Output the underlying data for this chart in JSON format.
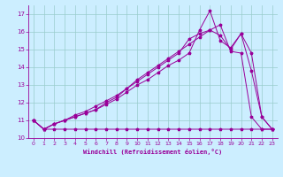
{
  "xlabel": "Windchill (Refroidissement éolien,°C)",
  "xlim": [
    -0.5,
    23.5
  ],
  "ylim": [
    10,
    17.5
  ],
  "yticks": [
    10,
    11,
    12,
    13,
    14,
    15,
    16,
    17
  ],
  "xticks": [
    0,
    1,
    2,
    3,
    4,
    5,
    6,
    7,
    8,
    9,
    10,
    11,
    12,
    13,
    14,
    15,
    16,
    17,
    18,
    19,
    20,
    21,
    22,
    23
  ],
  "bg_color": "#cceeff",
  "line_color": "#990099",
  "grid_color": "#99cccc",
  "series": {
    "line1": [
      11.0,
      10.5,
      10.8,
      11.0,
      11.2,
      11.4,
      11.6,
      11.9,
      12.2,
      12.6,
      13.0,
      13.3,
      13.7,
      14.1,
      14.4,
      14.8,
      16.1,
      17.2,
      15.5,
      15.1,
      15.9,
      13.8,
      11.2,
      10.5
    ],
    "line2": [
      11.0,
      10.5,
      10.8,
      11.0,
      11.2,
      11.4,
      11.6,
      12.0,
      12.3,
      12.8,
      13.2,
      13.6,
      14.0,
      14.4,
      14.8,
      15.6,
      15.9,
      16.1,
      15.8,
      15.0,
      15.9,
      14.8,
      11.2,
      10.5
    ],
    "line3": [
      11.0,
      10.5,
      10.5,
      10.5,
      10.5,
      10.5,
      10.5,
      10.5,
      10.5,
      10.5,
      10.5,
      10.5,
      10.5,
      10.5,
      10.5,
      10.5,
      10.5,
      10.5,
      10.5,
      10.5,
      10.5,
      10.5,
      10.5,
      10.5
    ],
    "line4": [
      11.0,
      10.5,
      10.8,
      11.0,
      11.3,
      11.5,
      11.8,
      12.1,
      12.4,
      12.8,
      13.3,
      13.7,
      14.1,
      14.5,
      14.9,
      15.3,
      15.7,
      16.1,
      16.4,
      14.9,
      14.8,
      11.2,
      10.5,
      10.5
    ]
  }
}
